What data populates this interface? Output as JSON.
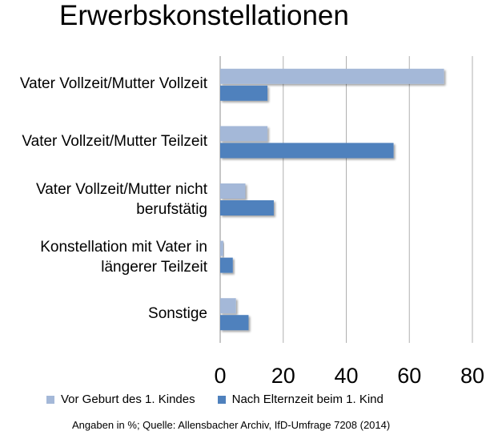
{
  "chart_data": {
    "type": "bar",
    "orientation": "horizontal",
    "title": "Erwerbskonstellationen",
    "categories": [
      "Vater Vollzeit/Mutter Vollzeit",
      "Vater Vollzeit/Mutter Teilzeit",
      "Vater Vollzeit/Mutter nicht\nberufstätig",
      "Konstellation mit Vater in\nlängerer Teilzeit",
      "Sonstige"
    ],
    "series": [
      {
        "name": "Vor Geburt des 1. Kindes",
        "color": "#a4b8d8",
        "values": [
          71,
          15,
          8,
          1,
          5
        ]
      },
      {
        "name": "Nach Elternzeit beim 1. Kind",
        "color": "#4f81bd",
        "values": [
          15,
          55,
          17,
          4,
          9
        ]
      }
    ],
    "x_ticks": [
      "0",
      "20",
      "40",
      "60",
      "80"
    ],
    "xlim": [
      0,
      80
    ],
    "grid": true,
    "legend_position": "bottom",
    "note": "Angaben in %; Quelle: Allensbacher Archiv, IfD-Umfrage 7208 (2014)"
  }
}
